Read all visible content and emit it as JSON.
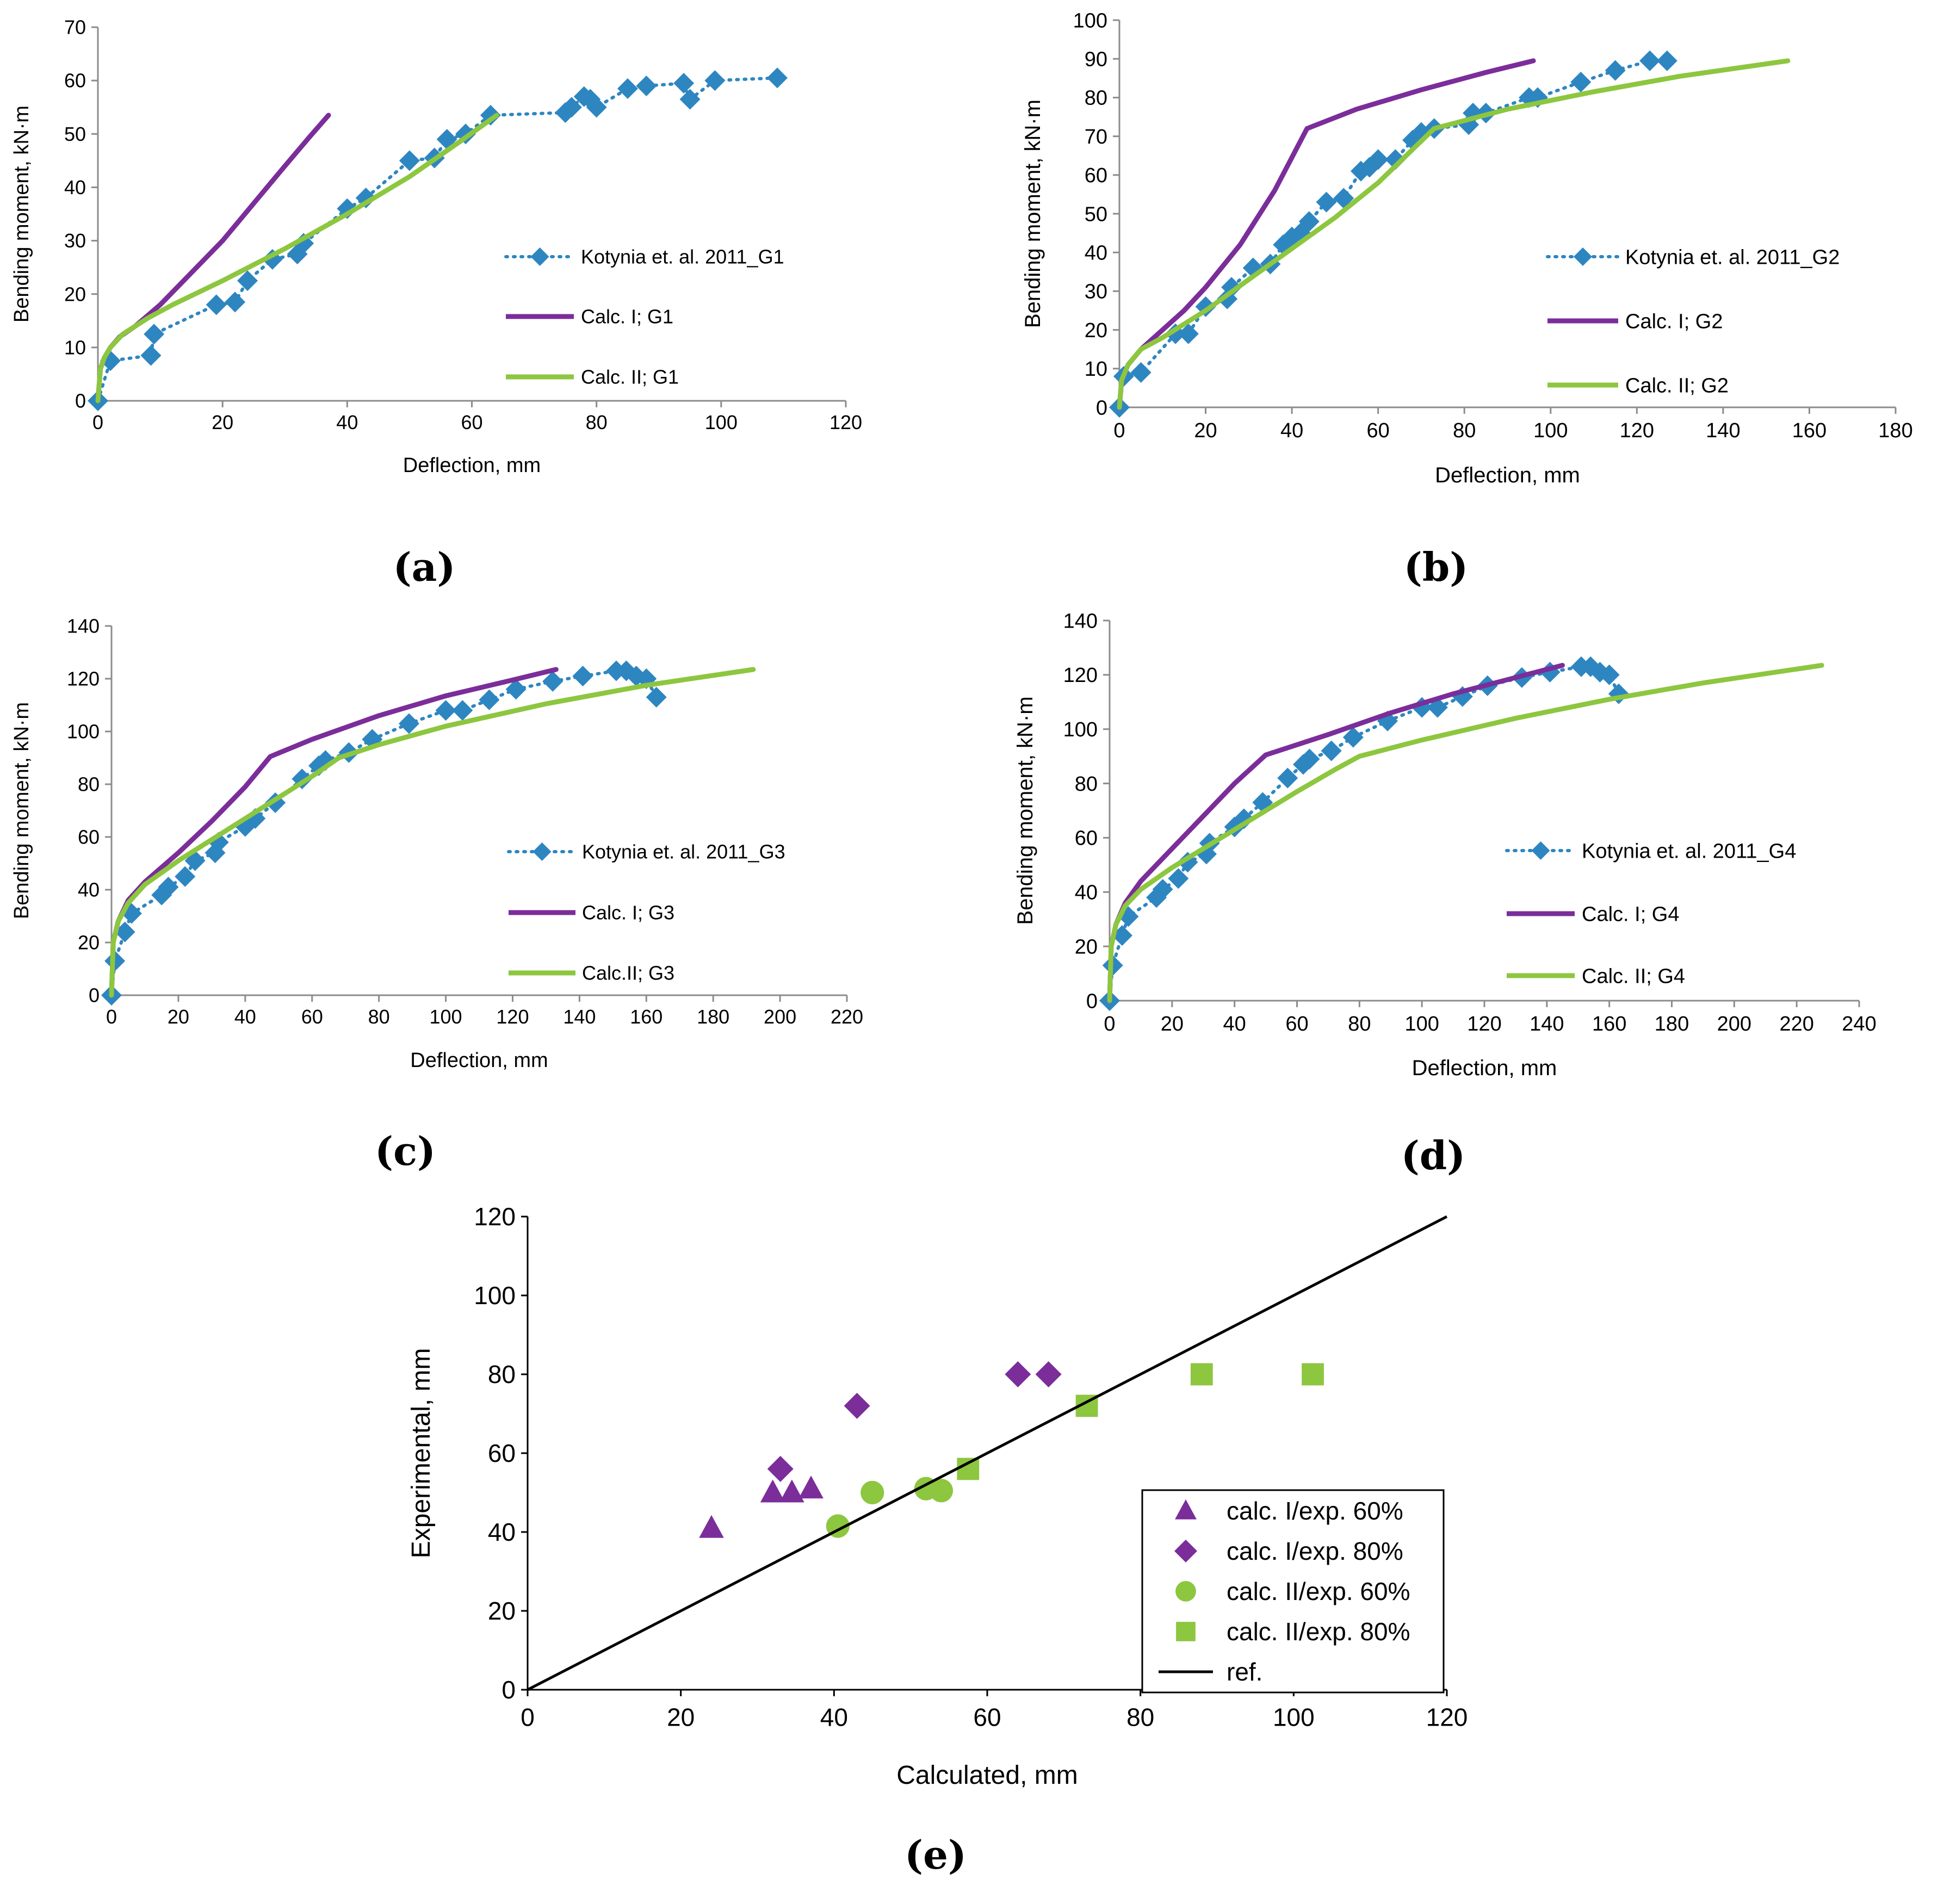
{
  "colors": {
    "experimental": "#2E86C1",
    "calc1": "#7B2D9A",
    "calc2": "#8DC63F",
    "ref": "#000000",
    "axis": "#8c8c8c"
  },
  "chart_data": [
    {
      "id": "a",
      "type": "line",
      "panel_label": "(a)",
      "xlabel": "Deflection, mm",
      "ylabel": "Bending moment, kN·m",
      "xlim": [
        0,
        120
      ],
      "ylim": [
        0,
        70
      ],
      "xticks": [
        0,
        20,
        40,
        60,
        80,
        100,
        120
      ],
      "yticks": [
        0,
        10,
        20,
        30,
        40,
        50,
        60,
        70
      ],
      "legend_position": "right",
      "series": [
        {
          "name": "Kotynia et. al. 2011_G1",
          "style": "exp",
          "x": [
            0,
            2,
            8.5,
            9,
            19,
            22,
            24,
            28,
            32,
            33,
            40,
            43,
            50,
            54,
            56,
            59,
            63,
            75,
            76,
            78,
            79,
            80,
            85,
            88,
            94,
            95,
            99,
            109
          ],
          "y": [
            0,
            7.5,
            8.5,
            12.5,
            18,
            18.5,
            22.5,
            26.5,
            27.5,
            29.5,
            36,
            38,
            45,
            45.5,
            49,
            50,
            53.5,
            54,
            55,
            57,
            56.5,
            55,
            58.5,
            59,
            59.5,
            56.5,
            60,
            60.5
          ]
        },
        {
          "name": "Calc. I; G1",
          "style": "calc1",
          "x": [
            0,
            0.4,
            1,
            2,
            3.5,
            6,
            10,
            15,
            20,
            25,
            30,
            34,
            37
          ],
          "y": [
            0,
            6,
            8,
            10,
            12,
            14,
            18,
            24,
            30,
            37,
            44,
            49.5,
            53.5
          ]
        },
        {
          "name": "Calc. II; G1",
          "style": "calc2",
          "x": [
            0,
            0.4,
            1,
            2,
            4,
            8,
            12,
            20,
            30,
            40,
            50,
            58,
            64
          ],
          "y": [
            0,
            6,
            8,
            10,
            12.5,
            15.5,
            18,
            22.5,
            28.5,
            35,
            42,
            48.5,
            53.5
          ]
        }
      ]
    },
    {
      "id": "b",
      "type": "line",
      "panel_label": "(b)",
      "xlabel": "Deflection, mm",
      "ylabel": "Bending moment, kN·m",
      "xlim": [
        0,
        180
      ],
      "ylim": [
        0,
        100
      ],
      "xticks": [
        0,
        20,
        40,
        60,
        80,
        100,
        120,
        140,
        160,
        180
      ],
      "yticks": [
        0,
        10,
        20,
        30,
        40,
        50,
        60,
        70,
        80,
        90,
        100
      ],
      "legend_position": "right",
      "series": [
        {
          "name": "Kotynia et. al. 2011_G2",
          "style": "exp",
          "x": [
            0,
            1,
            5,
            13,
            16,
            20,
            25,
            26,
            31,
            35,
            38,
            40,
            42,
            44,
            48,
            52,
            56,
            58,
            60,
            64,
            68,
            70,
            73,
            81,
            82,
            85,
            95,
            97,
            107,
            115,
            123,
            127
          ],
          "y": [
            0,
            8,
            9,
            19,
            19,
            26,
            28,
            31,
            36,
            37,
            42,
            44,
            45,
            48,
            53,
            54,
            61,
            62,
            64,
            64,
            69,
            71,
            72,
            73,
            76,
            76,
            80,
            80,
            84,
            87,
            89.5,
            89.5
          ]
        },
        {
          "name": "Calc. I; G2",
          "style": "calc1",
          "x": [
            0,
            0.5,
            2,
            5,
            10,
            15,
            20,
            28,
            36,
            43.5,
            55,
            70,
            85,
            96
          ],
          "y": [
            0,
            7,
            11,
            15,
            20,
            25,
            31,
            42,
            56,
            72,
            77,
            82,
            86.5,
            89.5
          ]
        },
        {
          "name": "Calc. II; G2",
          "style": "calc2",
          "x": [
            0,
            0.5,
            2,
            5,
            10,
            20,
            30,
            40,
            50,
            60,
            73,
            90,
            110,
            130,
            155
          ],
          "y": [
            0,
            7,
            11,
            15,
            18,
            25,
            33,
            41,
            49,
            58,
            72,
            77,
            81.5,
            85.5,
            89.5
          ]
        }
      ]
    },
    {
      "id": "c",
      "type": "line",
      "panel_label": "(c)",
      "xlabel": "Deflection, mm",
      "ylabel": "Bending moment, kN·m",
      "xlim": [
        0,
        220
      ],
      "ylim": [
        0,
        140
      ],
      "xticks": [
        0,
        20,
        40,
        60,
        80,
        100,
        120,
        140,
        160,
        180,
        200,
        220
      ],
      "yticks": [
        0,
        20,
        40,
        60,
        80,
        100,
        120,
        140
      ],
      "legend_position": "right",
      "series": [
        {
          "name": "Kotynia et. al. 2011_G3",
          "style": "exp",
          "x": [
            0,
            1,
            4,
            6,
            15,
            17,
            22,
            25,
            31,
            32,
            40,
            43,
            49,
            57,
            62,
            64,
            71,
            78,
            89,
            100,
            105,
            113,
            121,
            132,
            141,
            151,
            154,
            157,
            160,
            163
          ],
          "y": [
            0,
            13,
            24,
            31,
            38,
            41,
            45,
            51,
            54,
            58,
            64,
            67,
            73,
            82,
            87,
            89,
            92,
            97,
            103,
            108,
            108,
            112,
            116,
            119,
            121,
            123,
            123,
            121,
            120,
            113
          ]
        },
        {
          "name": "Calc. I; G3",
          "style": "calc1",
          "x": [
            0,
            0.5,
            2,
            5,
            10,
            20,
            30,
            40,
            47.5,
            60,
            80,
            100,
            120,
            133
          ],
          "y": [
            0,
            20,
            28,
            36,
            43,
            54,
            66,
            79,
            90.5,
            97,
            106,
            113.5,
            119.5,
            123.5
          ]
        },
        {
          "name": "Calc.II; G3",
          "style": "calc2",
          "x": [
            0,
            0.5,
            2,
            5,
            10,
            20,
            30,
            40,
            50,
            60,
            68,
            80,
            100,
            130,
            160,
            192
          ],
          "y": [
            0,
            20,
            28,
            35,
            42,
            51,
            59,
            67,
            75,
            83,
            90,
            95,
            102,
            110.5,
            117.5,
            123.5
          ]
        }
      ]
    },
    {
      "id": "d",
      "type": "line",
      "panel_label": "(d)",
      "xlabel": "Deflection, mm",
      "ylabel": "Bending moment, kN·m",
      "xlim": [
        0,
        240
      ],
      "ylim": [
        0,
        140
      ],
      "xticks": [
        0,
        20,
        40,
        60,
        80,
        100,
        120,
        140,
        160,
        180,
        200,
        220,
        240
      ],
      "yticks": [
        0,
        20,
        40,
        60,
        80,
        100,
        120,
        140
      ],
      "legend_position": "right",
      "series": [
        {
          "name": "Kotynia et. al. 2011_G4",
          "style": "exp",
          "x": [
            0,
            1,
            4,
            6,
            15,
            17,
            22,
            25,
            31,
            32,
            40,
            43,
            49,
            57,
            62,
            64,
            71,
            78,
            89,
            100,
            105,
            113,
            121,
            132,
            141,
            151,
            154,
            157,
            160,
            163
          ],
          "y": [
            0,
            13,
            24,
            31,
            38,
            41,
            45,
            51,
            54,
            58,
            64,
            67,
            73,
            82,
            87,
            89,
            92,
            97,
            103,
            108,
            108,
            112,
            116,
            119,
            121,
            123,
            123,
            121,
            120,
            113
          ]
        },
        {
          "name": "Calc. I; G4",
          "style": "calc1",
          "x": [
            0,
            0.5,
            2,
            5,
            10,
            20,
            30,
            40,
            50,
            70,
            90,
            110,
            130,
            145
          ],
          "y": [
            0,
            20,
            28,
            36,
            44,
            56,
            68,
            80,
            90.5,
            98,
            106,
            113,
            119,
            123.5
          ]
        },
        {
          "name": "Calc. II; G4",
          "style": "calc2",
          "x": [
            0,
            0.5,
            2,
            5,
            10,
            20,
            30,
            40,
            50,
            60,
            72,
            80,
            100,
            130,
            160,
            190,
            228
          ],
          "y": [
            0,
            20,
            28,
            35,
            41,
            49,
            56,
            63,
            70,
            77,
            85,
            90,
            96,
            104,
            111,
            117,
            123.5
          ]
        }
      ]
    },
    {
      "id": "e",
      "type": "scatter",
      "panel_label": "(e)",
      "xlabel": "Calculated, mm",
      "ylabel": "Experimental, mm",
      "xlim": [
        0,
        120
      ],
      "ylim": [
        0,
        120
      ],
      "xticks": [
        0,
        20,
        40,
        60,
        80,
        100,
        120
      ],
      "yticks": [
        0,
        20,
        40,
        60,
        80,
        100,
        120
      ],
      "legend_position": "right",
      "series": [
        {
          "name": "calc. I/exp. 60%",
          "marker": "triangle",
          "color_key": "calc1",
          "x": [
            24,
            32,
            34.5,
            37
          ],
          "y": [
            41,
            50,
            50,
            51
          ]
        },
        {
          "name": "calc. I/exp. 80%",
          "marker": "diamond",
          "color_key": "calc1",
          "x": [
            33,
            43,
            64,
            68
          ],
          "y": [
            56,
            72,
            80,
            80
          ]
        },
        {
          "name": "calc. II/exp. 60%",
          "marker": "circle",
          "color_key": "calc2",
          "x": [
            40.5,
            45,
            52,
            54
          ],
          "y": [
            41.5,
            50,
            51,
            50.5
          ]
        },
        {
          "name": "calc. II/exp. 80%",
          "marker": "square",
          "color_key": "calc2",
          "x": [
            57.5,
            73,
            88,
            102.5
          ],
          "y": [
            56,
            72,
            80,
            80
          ]
        },
        {
          "name": "ref.",
          "marker": "line",
          "color_key": "ref",
          "x": [
            0,
            120
          ],
          "y": [
            0,
            120
          ]
        }
      ]
    }
  ]
}
